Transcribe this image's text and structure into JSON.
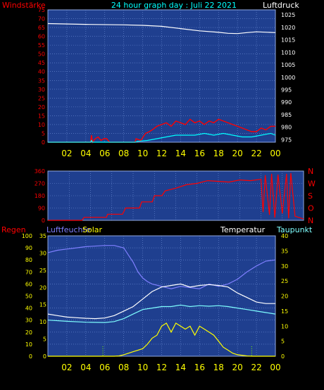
{
  "header": {
    "left_label": "Windstärke",
    "title": "24 hour graph day : Juli 22 2021",
    "right_label": "Luftdruck"
  },
  "panel2": {
    "directions": [
      "N",
      "W",
      "S",
      "O",
      "N"
    ]
  },
  "panel3": {
    "label_rain": "Regen",
    "label_humidity": "Luftfeuchte",
    "label_solar": "Solar",
    "label_temperature": "Temperatur",
    "label_dewpoint": "Taupunkt"
  },
  "colors": {
    "panel_bg": "#1f3f8f",
    "grid": "#6f8fd8",
    "pressure": "#ffffff",
    "wind_gust": "#ff0000",
    "wind_avg": "#00ffff",
    "wind_dir": "#ff0000",
    "temperature": "#ffffff",
    "dewpoint": "#7fffff",
    "humidity": "#7f7fff",
    "solar": "#ffff00",
    "red_text": "#ff0000",
    "yellow_text": "#ffff00"
  },
  "chart_data": [
    {
      "type": "line",
      "name": "wind-pressure",
      "x_ticks": [
        "02",
        "04",
        "06",
        "08",
        "10",
        "12",
        "14",
        "16",
        "18",
        "20",
        "22",
        "00"
      ],
      "y_left_ticks": [
        "0",
        "5",
        "10",
        "15",
        "20",
        "25",
        "30",
        "35",
        "40",
        "45",
        "50",
        "55",
        "60",
        "65",
        "70",
        "75"
      ],
      "y_right_ticks": [
        "975",
        "980",
        "985",
        "990",
        "995",
        "1000",
        "1005",
        "1010",
        "1015",
        "1020",
        "1025"
      ],
      "ylim_left": [
        0,
        75
      ],
      "ylim_right": [
        974,
        1027
      ],
      "xlim": [
        0,
        24
      ],
      "pressure_points": [
        [
          0,
          1021.5
        ],
        [
          4,
          1021.2
        ],
        [
          8,
          1021
        ],
        [
          10,
          1020.8
        ],
        [
          12,
          1020.4
        ],
        [
          14,
          1019.5
        ],
        [
          16,
          1018.6
        ],
        [
          18,
          1018
        ],
        [
          19,
          1017.6
        ],
        [
          20,
          1017.5
        ],
        [
          21,
          1017.9
        ],
        [
          22,
          1018.2
        ],
        [
          24,
          1017.9
        ]
      ],
      "gust_points": [
        [
          0,
          0
        ],
        [
          4.5,
          0
        ],
        [
          4.6,
          4
        ],
        [
          4.7,
          0
        ],
        [
          5.0,
          2
        ],
        [
          5.3,
          3
        ],
        [
          5.6,
          1
        ],
        [
          5.9,
          2
        ],
        [
          6.2,
          2
        ],
        [
          6.5,
          0
        ],
        [
          9.2,
          0
        ],
        [
          9.3,
          2
        ],
        [
          9.8,
          1
        ],
        [
          10.3,
          5
        ],
        [
          10.7,
          6
        ],
        [
          11,
          7
        ],
        [
          11.5,
          9
        ],
        [
          12,
          10
        ],
        [
          12.5,
          11
        ],
        [
          13,
          9
        ],
        [
          13.5,
          12
        ],
        [
          14,
          11
        ],
        [
          14.5,
          10
        ],
        [
          15,
          13
        ],
        [
          15.5,
          11
        ],
        [
          16,
          12
        ],
        [
          16.5,
          10
        ],
        [
          17,
          12
        ],
        [
          17.5,
          11
        ],
        [
          18,
          13
        ],
        [
          18.5,
          12
        ],
        [
          19,
          11
        ],
        [
          19.5,
          10
        ],
        [
          20,
          9
        ],
        [
          20.5,
          8
        ],
        [
          21,
          7
        ],
        [
          21.5,
          6
        ],
        [
          22,
          6
        ],
        [
          22.5,
          8
        ],
        [
          23,
          7
        ],
        [
          23.5,
          9
        ],
        [
          24,
          9
        ]
      ],
      "avg_points": [
        [
          0,
          0
        ],
        [
          4.5,
          0
        ],
        [
          4.6,
          1
        ],
        [
          4.7,
          0
        ],
        [
          9.2,
          0
        ],
        [
          9.5,
          0.5
        ],
        [
          10.5,
          1
        ],
        [
          11.5,
          2
        ],
        [
          12.5,
          3
        ],
        [
          13.5,
          4
        ],
        [
          14.5,
          4
        ],
        [
          15.5,
          4
        ],
        [
          16.5,
          5
        ],
        [
          17.5,
          4
        ],
        [
          18.5,
          5
        ],
        [
          19.5,
          4
        ],
        [
          20.5,
          3
        ],
        [
          21.5,
          3
        ],
        [
          22.5,
          4
        ],
        [
          23.5,
          5
        ],
        [
          24,
          4
        ]
      ]
    },
    {
      "type": "line",
      "name": "wind-direction",
      "x_ticks": [],
      "y_left_ticks": [
        "0",
        "90",
        "180",
        "270",
        "360"
      ],
      "ylim": [
        0,
        360
      ],
      "xlim": [
        0,
        24
      ],
      "points": [
        [
          0,
          0
        ],
        [
          3,
          0
        ],
        [
          3.2,
          0
        ],
        [
          3.4,
          22
        ],
        [
          5.5,
          22
        ],
        [
          5.6,
          45
        ],
        [
          7,
          45
        ],
        [
          7.3,
          90
        ],
        [
          8.6,
          90
        ],
        [
          8.8,
          135
        ],
        [
          9.8,
          135
        ],
        [
          10,
          180
        ],
        [
          10.7,
          180
        ],
        [
          11,
          215
        ],
        [
          12,
          235
        ],
        [
          13,
          260
        ],
        [
          14,
          270
        ],
        [
          15,
          290
        ],
        [
          16,
          285
        ],
        [
          17,
          280
        ],
        [
          18,
          295
        ],
        [
          19,
          290
        ],
        [
          20,
          300
        ],
        [
          20.2,
          60
        ],
        [
          20.4,
          330
        ],
        [
          20.8,
          40
        ],
        [
          21,
          340
        ],
        [
          21.3,
          20
        ],
        [
          21.6,
          335
        ],
        [
          22,
          50
        ],
        [
          22.4,
          340
        ],
        [
          22.6,
          15
        ],
        [
          22.8,
          345
        ],
        [
          23.2,
          30
        ],
        [
          24,
          10
        ]
      ]
    },
    {
      "type": "line",
      "name": "temperature-humidity-solar",
      "x_ticks": [
        "02",
        "04",
        "06",
        "08",
        "10",
        "12",
        "14",
        "16",
        "18",
        "20",
        "22",
        "00"
      ],
      "y_left_ticks": [
        "0",
        "10",
        "20",
        "30",
        "40",
        "50",
        "60",
        "70",
        "80",
        "90",
        "100"
      ],
      "y_inner_ticks": [
        "0",
        "5",
        "10",
        "15",
        "20",
        "25",
        "30",
        "35"
      ],
      "y_right_ticks": [
        "0",
        "5",
        "10",
        "15",
        "20",
        "25",
        "30",
        "35",
        "40"
      ],
      "ylim_left": [
        0,
        100
      ],
      "ylim_right": [
        0,
        40
      ],
      "xlim": [
        0,
        24
      ],
      "humidity_points": [
        [
          0,
          86
        ],
        [
          1,
          88
        ],
        [
          2,
          89
        ],
        [
          3,
          90
        ],
        [
          4,
          91
        ],
        [
          6,
          92
        ],
        [
          7,
          92
        ],
        [
          7.5,
          91
        ],
        [
          8,
          90
        ],
        [
          8.5,
          84
        ],
        [
          9,
          78
        ],
        [
          9.5,
          70
        ],
        [
          10,
          65
        ],
        [
          10.5,
          62
        ],
        [
          11,
          60
        ],
        [
          12,
          58
        ],
        [
          13,
          56
        ],
        [
          14,
          58
        ],
        [
          15,
          57
        ],
        [
          16,
          56
        ],
        [
          17,
          60
        ],
        [
          18,
          58
        ],
        [
          19,
          60
        ],
        [
          20,
          64
        ],
        [
          21,
          70
        ],
        [
          22,
          75
        ],
        [
          23,
          79
        ],
        [
          24,
          80
        ]
      ],
      "temperature_points": [
        [
          0,
          14
        ],
        [
          1,
          13.5
        ],
        [
          2,
          13
        ],
        [
          3,
          12.8
        ],
        [
          4,
          12.6
        ],
        [
          5,
          12.5
        ],
        [
          6,
          12.7
        ],
        [
          7,
          13.5
        ],
        [
          8,
          15
        ],
        [
          9,
          16.5
        ],
        [
          10,
          19
        ],
        [
          11,
          21.5
        ],
        [
          12,
          23
        ],
        [
          13,
          23.5
        ],
        [
          14,
          24
        ],
        [
          15,
          23
        ],
        [
          16,
          23.5
        ],
        [
          17,
          23.8
        ],
        [
          18,
          23.5
        ],
        [
          19,
          23
        ],
        [
          20,
          21
        ],
        [
          21,
          19.5
        ],
        [
          22,
          18
        ],
        [
          23,
          17.5
        ],
        [
          24,
          17.5
        ]
      ],
      "dewpoint_points": [
        [
          0,
          12
        ],
        [
          2,
          11.6
        ],
        [
          4,
          11.3
        ],
        [
          6,
          11.2
        ],
        [
          7,
          11.5
        ],
        [
          8,
          12.5
        ],
        [
          9,
          14
        ],
        [
          10,
          15.5
        ],
        [
          11,
          16
        ],
        [
          12,
          16.5
        ],
        [
          13,
          16.5
        ],
        [
          14,
          17
        ],
        [
          15,
          16.5
        ],
        [
          16,
          16.8
        ],
        [
          17,
          16.6
        ],
        [
          18,
          16.8
        ],
        [
          19,
          16.5
        ],
        [
          20,
          16
        ],
        [
          21,
          15.5
        ],
        [
          22,
          15
        ],
        [
          23,
          14.5
        ],
        [
          24,
          14
        ]
      ],
      "solar_points": [
        [
          0,
          0
        ],
        [
          7,
          0
        ],
        [
          7.5,
          0.1
        ],
        [
          8,
          0.5
        ],
        [
          9,
          1.5
        ],
        [
          10,
          2.5
        ],
        [
          10.5,
          4
        ],
        [
          11,
          6
        ],
        [
          11.5,
          7
        ],
        [
          12,
          10
        ],
        [
          12.5,
          11
        ],
        [
          13,
          8
        ],
        [
          13.5,
          11
        ],
        [
          14,
          10
        ],
        [
          14.5,
          9
        ],
        [
          15,
          10
        ],
        [
          15.5,
          7
        ],
        [
          16,
          10
        ],
        [
          16.5,
          9
        ],
        [
          17,
          8
        ],
        [
          17.5,
          7
        ],
        [
          18,
          5
        ],
        [
          18.5,
          3
        ],
        [
          19,
          2
        ],
        [
          19.5,
          1
        ],
        [
          20,
          0.5
        ],
        [
          21,
          0.1
        ],
        [
          21.5,
          0
        ],
        [
          24,
          0
        ]
      ]
    }
  ]
}
